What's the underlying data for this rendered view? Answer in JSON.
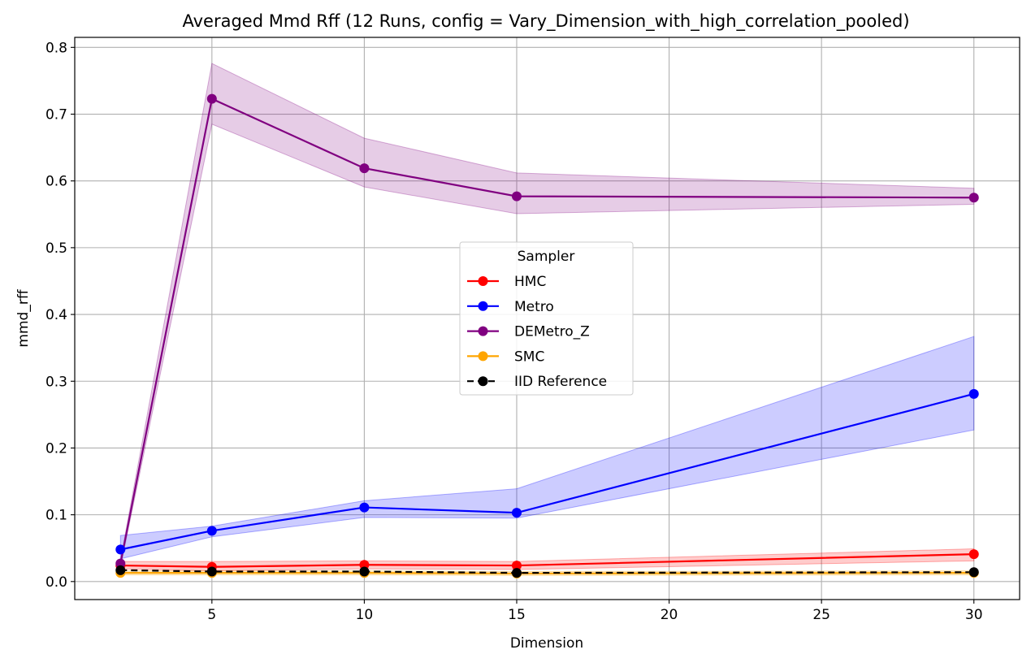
{
  "chart_data": {
    "type": "line",
    "title": "Averaged Mmd Rff (12 Runs, config = Vary_Dimension_with_high_correlation_pooled)",
    "xlabel": "Dimension",
    "ylabel": "mmd_rff",
    "x": [
      2,
      5,
      10,
      15,
      30
    ],
    "xlim": [
      0.5,
      31.5
    ],
    "ylim": [
      -0.027,
      0.815
    ],
    "xticks": [
      5,
      10,
      15,
      20,
      25,
      30
    ],
    "yticks": [
      0.0,
      0.1,
      0.2,
      0.3,
      0.4,
      0.5,
      0.6,
      0.7,
      0.8
    ],
    "ytick_labels": [
      "0.0",
      "0.1",
      "0.2",
      "0.3",
      "0.4",
      "0.5",
      "0.6",
      "0.7",
      "0.8"
    ],
    "grid": true,
    "legend": {
      "title": "Sampler",
      "placement": "center"
    },
    "series": [
      {
        "name": "HMC",
        "color": "#ff0000",
        "dash": false,
        "values": [
          0.024,
          0.022,
          0.025,
          0.024,
          0.041
        ],
        "lower": [
          0.019,
          0.016,
          0.019,
          0.018,
          0.031
        ],
        "upper": [
          0.03,
          0.03,
          0.031,
          0.03,
          0.049
        ]
      },
      {
        "name": "Metro",
        "color": "#0000ff",
        "dash": false,
        "values": [
          0.048,
          0.076,
          0.111,
          0.103,
          0.281
        ],
        "lower": [
          0.034,
          0.067,
          0.096,
          0.095,
          0.227
        ],
        "upper": [
          0.069,
          0.083,
          0.121,
          0.139,
          0.367
        ]
      },
      {
        "name": "DEMetro_Z",
        "color": "#800080",
        "dash": false,
        "values": [
          0.027,
          0.723,
          0.619,
          0.577,
          0.575
        ],
        "lower": [
          0.022,
          0.685,
          0.591,
          0.551,
          0.565
        ],
        "upper": [
          0.032,
          0.776,
          0.664,
          0.612,
          0.589
        ]
      },
      {
        "name": "SMC",
        "color": "#ffa500",
        "dash": false,
        "values": [
          0.013,
          0.013,
          0.013,
          0.012,
          0.013
        ],
        "lower": [
          0.01,
          0.01,
          0.01,
          0.009,
          0.01
        ],
        "upper": [
          0.016,
          0.016,
          0.016,
          0.015,
          0.016
        ]
      },
      {
        "name": "IID Reference",
        "color": "#000000",
        "dash": true,
        "values": [
          0.017,
          0.015,
          0.015,
          0.013,
          0.014
        ],
        "lower": null,
        "upper": null
      }
    ]
  }
}
